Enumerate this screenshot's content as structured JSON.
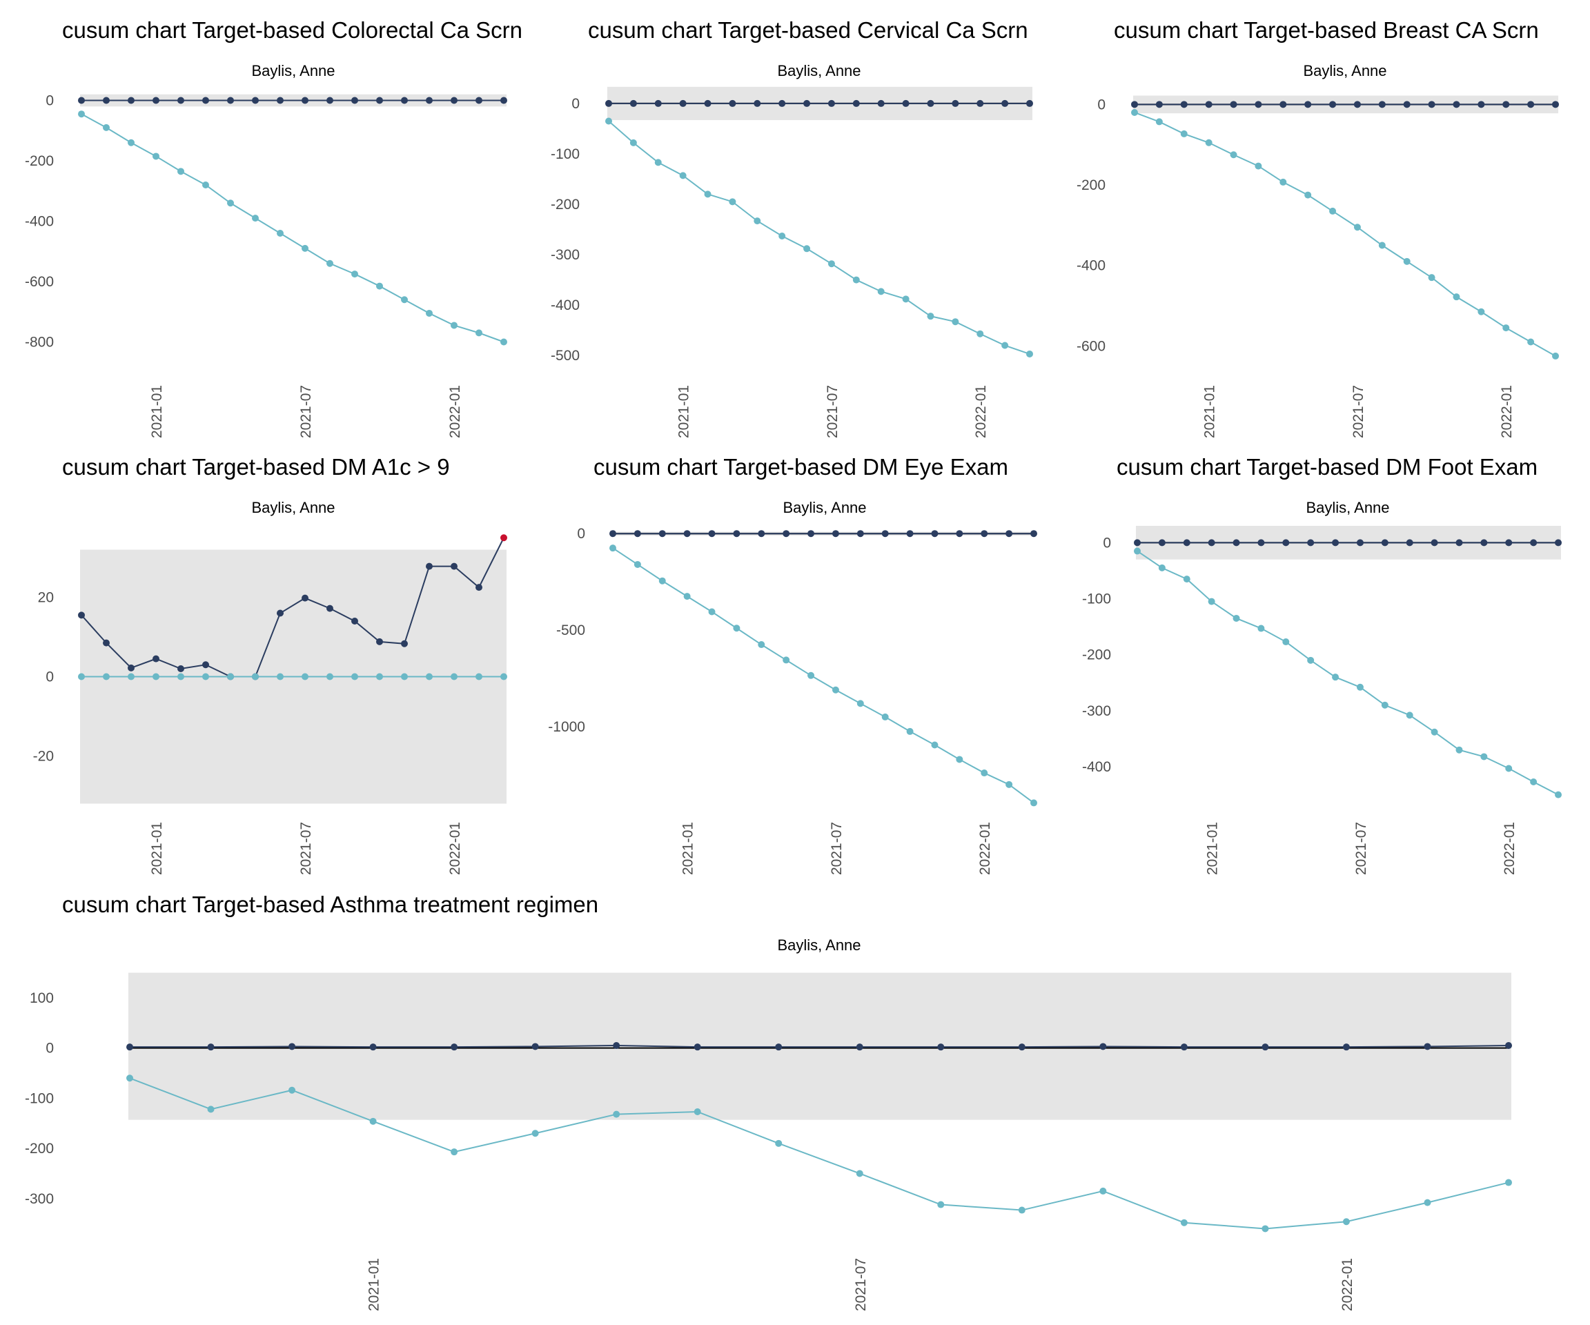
{
  "colors": {
    "band": "#e5e5e5",
    "upper": "#2b3d60",
    "lower": "#6ab8c6",
    "signal": "#c8102e",
    "target_line": "#000000"
  },
  "chart_data": [
    {
      "type": "line",
      "title": "cusum chart Target-based  Colorectal Ca Scrn",
      "subtitle": "Baylis, Anne",
      "ylim": [
        -920,
        40
      ],
      "yticks": [
        0,
        -200,
        -400,
        -600,
        -800
      ],
      "band": [
        -20,
        20
      ],
      "x": [
        "2020-10",
        "2020-11",
        "2020-12",
        "2021-01",
        "2021-02",
        "2021-03",
        "2021-04",
        "2021-05",
        "2021-06",
        "2021-07",
        "2021-08",
        "2021-09",
        "2021-10",
        "2021-11",
        "2021-12",
        "2022-01",
        "2022-02",
        "2022-03"
      ],
      "xticks": [
        "2021-01",
        "2021-07",
        "2022-01"
      ],
      "series": [
        {
          "role": "upper",
          "values": [
            0,
            0,
            0,
            0,
            0,
            0,
            0,
            0,
            0,
            0,
            0,
            0,
            0,
            0,
            0,
            0,
            0,
            0
          ]
        },
        {
          "role": "lower",
          "values": [
            -45,
            -90,
            -140,
            -185,
            -235,
            -280,
            -340,
            -390,
            -440,
            -490,
            -540,
            -575,
            -615,
            -660,
            -705,
            -745,
            -770,
            -800
          ]
        }
      ]
    },
    {
      "type": "line",
      "title": "cusum chart Target-based  Cervical Ca Scrn",
      "subtitle": "Baylis, Anne",
      "ylim": [
        -545,
        30
      ],
      "yticks": [
        0,
        -100,
        -200,
        -300,
        -400,
        -500
      ],
      "band": [
        -33,
        33
      ],
      "x": [
        "2020-10",
        "2020-11",
        "2020-12",
        "2021-01",
        "2021-02",
        "2021-03",
        "2021-04",
        "2021-05",
        "2021-06",
        "2021-07",
        "2021-08",
        "2021-09",
        "2021-10",
        "2021-11",
        "2021-12",
        "2022-01",
        "2022-02",
        "2022-03"
      ],
      "xticks": [
        "2021-01",
        "2021-07",
        "2022-01"
      ],
      "series": [
        {
          "role": "upper",
          "values": [
            0,
            0,
            0,
            0,
            0,
            0,
            0,
            0,
            0,
            0,
            0,
            0,
            0,
            0,
            0,
            0,
            0,
            0
          ]
        },
        {
          "role": "lower",
          "values": [
            -35,
            -78,
            -117,
            -143,
            -180,
            -195,
            -233,
            -263,
            -288,
            -318,
            -350,
            -373,
            -388,
            -422,
            -433,
            -457,
            -480,
            -497
          ]
        }
      ]
    },
    {
      "type": "line",
      "title": "cusum chart Target-based  Breast CA Scrn",
      "subtitle": "Baylis, Anne",
      "ylim": [
        -680,
        40
      ],
      "yticks": [
        0,
        -200,
        -400,
        -600
      ],
      "band": [
        -22,
        22
      ],
      "x": [
        "2020-10",
        "2020-11",
        "2020-12",
        "2021-01",
        "2021-02",
        "2021-03",
        "2021-04",
        "2021-05",
        "2021-06",
        "2021-07",
        "2021-08",
        "2021-09",
        "2021-10",
        "2021-11",
        "2021-12",
        "2022-01",
        "2022-02",
        "2022-03"
      ],
      "xticks": [
        "2021-01",
        "2021-07",
        "2022-01"
      ],
      "series": [
        {
          "role": "upper",
          "values": [
            0,
            0,
            0,
            0,
            0,
            0,
            0,
            0,
            0,
            0,
            0,
            0,
            0,
            0,
            0,
            0,
            0,
            0
          ]
        },
        {
          "role": "lower",
          "values": [
            -20,
            -43,
            -73,
            -95,
            -125,
            -153,
            -193,
            -225,
            -265,
            -305,
            -350,
            -390,
            -430,
            -478,
            -515,
            -555,
            -590,
            -625
          ]
        }
      ]
    },
    {
      "type": "line",
      "title": "cusum chart Target-based  DM A1c > 9",
      "subtitle": "Baylis, Anne",
      "ylim": [
        -34,
        38
      ],
      "yticks": [
        20,
        0,
        -20
      ],
      "band": [
        -32,
        32
      ],
      "x": [
        "2020-10",
        "2020-11",
        "2020-12",
        "2021-01",
        "2021-02",
        "2021-03",
        "2021-04",
        "2021-05",
        "2021-06",
        "2021-07",
        "2021-08",
        "2021-09",
        "2021-10",
        "2021-11",
        "2021-12",
        "2022-01",
        "2022-02",
        "2022-03"
      ],
      "xticks": [
        "2021-01",
        "2021-07",
        "2022-01"
      ],
      "series": [
        {
          "role": "upper",
          "values": [
            15.5,
            8.5,
            2.2,
            4.5,
            2,
            3,
            0,
            0,
            16,
            19.8,
            17.2,
            14,
            8.8,
            8.3,
            27.8,
            27.8,
            22.5,
            35
          ]
        },
        {
          "role": "lower",
          "values": [
            0,
            0,
            0,
            0,
            0,
            0,
            0,
            0,
            0,
            0,
            0,
            0,
            0,
            0,
            0,
            0,
            0,
            0
          ]
        }
      ],
      "signals": [
        17
      ]
    },
    {
      "type": "line",
      "title": "cusum chart Target-based  DM Eye Exam",
      "subtitle": "Baylis, Anne",
      "ylim": [
        -1440,
        40
      ],
      "yticks": [
        0,
        -500,
        -1000
      ],
      "band": [
        -10,
        10
      ],
      "x": [
        "2020-10",
        "2020-11",
        "2020-12",
        "2021-01",
        "2021-02",
        "2021-03",
        "2021-04",
        "2021-05",
        "2021-06",
        "2021-07",
        "2021-08",
        "2021-09",
        "2021-10",
        "2021-11",
        "2021-12",
        "2022-01",
        "2022-02",
        "2022-03"
      ],
      "xticks": [
        "2021-01",
        "2021-07",
        "2022-01"
      ],
      "series": [
        {
          "role": "upper",
          "values": [
            0,
            0,
            0,
            0,
            0,
            0,
            0,
            0,
            0,
            0,
            0,
            0,
            0,
            0,
            0,
            0,
            0,
            0
          ]
        },
        {
          "role": "lower",
          "values": [
            -75,
            -160,
            -245,
            -325,
            -405,
            -490,
            -575,
            -655,
            -735,
            -810,
            -880,
            -950,
            -1025,
            -1095,
            -1170,
            -1240,
            -1300,
            -1395
          ]
        }
      ]
    },
    {
      "type": "line",
      "title": "cusum chart Target-based  DM Foot Exam",
      "subtitle": "Baylis, Anne",
      "ylim": [
        -480,
        30
      ],
      "yticks": [
        0,
        -100,
        -200,
        -300,
        -400
      ],
      "band": [
        -30,
        30
      ],
      "x": [
        "2020-10",
        "2020-11",
        "2020-12",
        "2021-01",
        "2021-02",
        "2021-03",
        "2021-04",
        "2021-05",
        "2021-06",
        "2021-07",
        "2021-08",
        "2021-09",
        "2021-10",
        "2021-11",
        "2021-12",
        "2022-01",
        "2022-02",
        "2022-03"
      ],
      "xticks": [
        "2021-01",
        "2021-07",
        "2022-01"
      ],
      "series": [
        {
          "role": "upper",
          "values": [
            0,
            0,
            0,
            0,
            0,
            0,
            0,
            0,
            0,
            0,
            0,
            0,
            0,
            0,
            0,
            0,
            0,
            0
          ]
        },
        {
          "role": "lower",
          "values": [
            -15,
            -45,
            -65,
            -105,
            -135,
            -153,
            -177,
            -210,
            -240,
            -258,
            -290,
            -308,
            -338,
            -370,
            -382,
            -403,
            -427,
            -450
          ]
        }
      ]
    },
    {
      "type": "line",
      "title": "cusum chart Target-based  Asthma treatment regimen",
      "subtitle": "Baylis, Anne",
      "ylim": [
        -380,
        170
      ],
      "yticks": [
        100,
        0,
        -100,
        -200,
        -300
      ],
      "band": [
        -143,
        150
      ],
      "x": [
        "2020-10",
        "2020-11",
        "2020-12",
        "2021-01",
        "2021-02",
        "2021-03",
        "2021-04",
        "2021-05",
        "2021-06",
        "2021-07",
        "2021-08",
        "2021-09",
        "2021-10",
        "2021-11",
        "2021-12",
        "2022-01",
        "2022-02",
        "2022-03"
      ],
      "xticks": [
        "2021-01",
        "2021-07",
        "2022-01"
      ],
      "series": [
        {
          "role": "upper",
          "values": [
            2,
            2,
            3,
            2,
            2,
            3,
            5,
            2,
            2,
            2,
            2,
            2,
            3,
            2,
            2,
            2,
            3,
            5
          ]
        },
        {
          "role": "lower",
          "values": [
            -60,
            -122,
            -84,
            -146,
            -207,
            -170,
            -132,
            -127,
            -190,
            -250,
            -312,
            -323,
            -285,
            -348,
            -360,
            -346,
            -308,
            -268
          ]
        }
      ]
    }
  ]
}
